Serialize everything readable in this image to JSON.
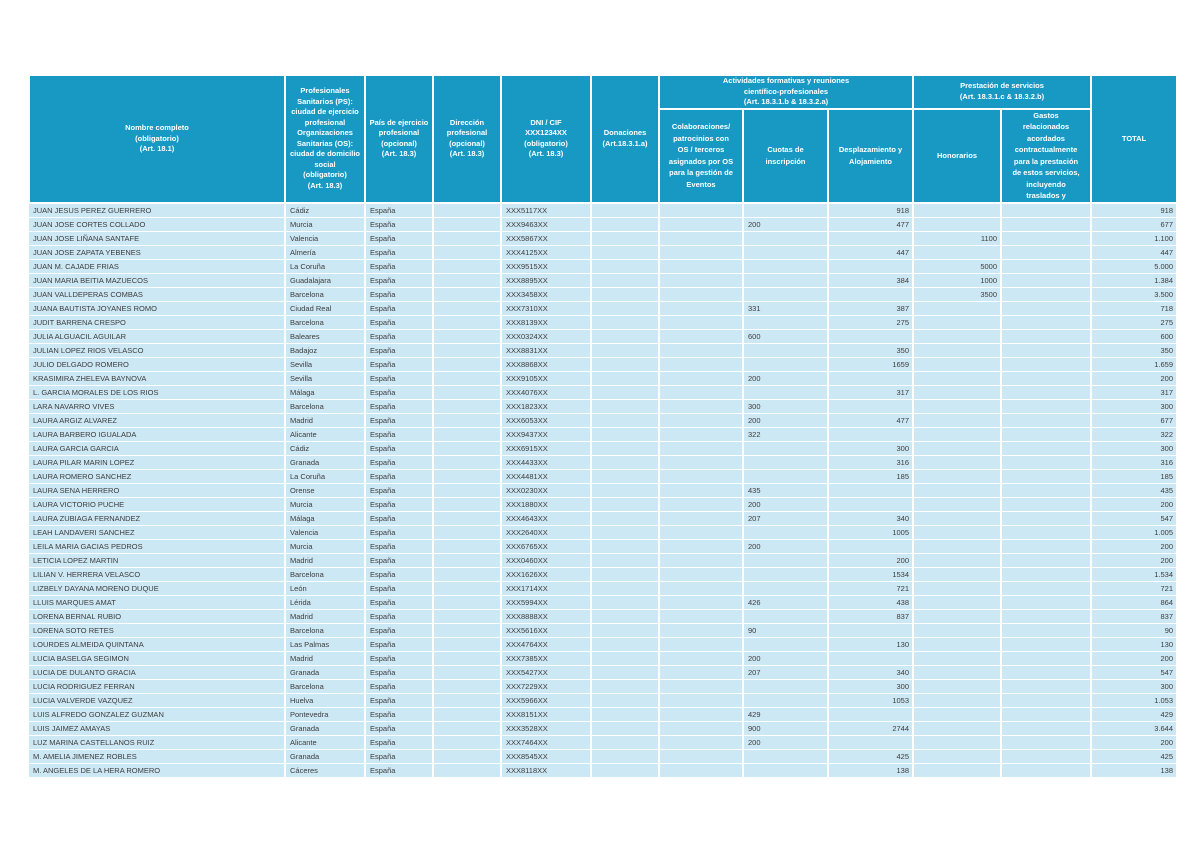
{
  "table": {
    "header": {
      "nombre": "Nombre completo\n(obligatorio)\n(Art. 18.1)",
      "ciudad": "Profesionales\nSanitarios (PS):\nciudad de ejercicio\nprofesional\nOrganizaciones\nSanitarias (OS):\nciudad de domicilio\nsocial\n(obligatorio)\n(Art. 18.3)",
      "pais": "País de ejercicio\nprofesional\n(opcional)\n(Art. 18.3)",
      "direccion": "Dirección\nprofesional\n(opcional)\n(Art. 18.3)",
      "dni": "DNI / CIF\nXXX1234XX\n(obligatorio)\n(Art. 18.3)",
      "donaciones": "Donaciones\n(Art.18.3.1.a)",
      "grupo_actividades": "Actividades formativas y reuniones\ncientífico-profesionales\n(Art. 18.3.1.b & 18.3.2.a)",
      "colaboraciones": "Colaboraciones/\npatrocinios con\nOS / terceros\nasignados por OS\npara la gestión de\nEventos",
      "cuotas": "Cuotas de\ninscripción",
      "desplazamiento": "Desplazamiento y\nAlojamiento",
      "grupo_prestacion": "Prestación de servicios\n(Art. 18.3.1.c & 18.3.2.b)",
      "honorarios": "Honorarios",
      "gastos": "Gastos\nrelacionados\nacordados\ncontractualmente\npara la prestación\nde estos servicios,\nincluyendo\ntraslados y",
      "total": "TOTAL"
    },
    "colors": {
      "header_bg": "#1899C4",
      "row_bg": "#CDE8F5",
      "grid": "#FFFFFF",
      "text": "#3C3C3C"
    },
    "rows": [
      [
        "JUAN JESUS PEREZ GUERRERO",
        "Cádiz",
        "España",
        "",
        "XXX5117XX",
        "",
        "",
        "",
        "918",
        "",
        "",
        "918"
      ],
      [
        "JUAN JOSE CORTES COLLADO",
        "Murcia",
        "España",
        "",
        "XXX9463XX",
        "",
        "",
        "200",
        "477",
        "",
        "",
        "677"
      ],
      [
        "JUAN JOSE LIÑANA SANTAFE",
        "Valencia",
        "España",
        "",
        "XXX5867XX",
        "",
        "",
        "",
        "",
        "1100",
        "",
        "1.100"
      ],
      [
        "JUAN JOSE ZAPATA YEBENES",
        "Almería",
        "España",
        "",
        "XXX4125XX",
        "",
        "",
        "",
        "447",
        "",
        "",
        "447"
      ],
      [
        "JUAN M. CAJADE FRIAS",
        "La Coruña",
        "España",
        "",
        "XXX9515XX",
        "",
        "",
        "",
        "",
        "5000",
        "",
        "5.000"
      ],
      [
        "JUAN MARIA BEITIA MAZUECOS",
        "Guadalajara",
        "España",
        "",
        "XXX8895XX",
        "",
        "",
        "",
        "384",
        "1000",
        "",
        "1.384"
      ],
      [
        "JUAN VALLDEPERAS COMBAS",
        "Barcelona",
        "España",
        "",
        "XXX3458XX",
        "",
        "",
        "",
        "",
        "3500",
        "",
        "3.500"
      ],
      [
        "JUANA BAUTISTA JOYANES ROMO",
        "Ciudad Real",
        "España",
        "",
        "XXX7310XX",
        "",
        "",
        "331",
        "387",
        "",
        "",
        "718"
      ],
      [
        "JUDIT BARRENA CRESPO",
        "Barcelona",
        "España",
        "",
        "XXX8139XX",
        "",
        "",
        "",
        "275",
        "",
        "",
        "275"
      ],
      [
        "JULIA ALGUACIL AGUILAR",
        "Baleares",
        "España",
        "",
        "XXX0324XX",
        "",
        "",
        "600",
        "",
        "",
        "",
        "600"
      ],
      [
        "JULIAN LOPEZ RIOS VELASCO",
        "Badajoz",
        "España",
        "",
        "XXX8831XX",
        "",
        "",
        "",
        "350",
        "",
        "",
        "350"
      ],
      [
        "JULIO DELGADO ROMERO",
        "Sevilla",
        "España",
        "",
        "XXX8868XX",
        "",
        "",
        "",
        "1659",
        "",
        "",
        "1.659"
      ],
      [
        "KRASIMIRA ZHELEVA BAYNOVA",
        "Sevilla",
        "España",
        "",
        "XXX9105XX",
        "",
        "",
        "200",
        "",
        "",
        "",
        "200"
      ],
      [
        "L. GARCIA MORALES DE LOS RIOS",
        "Málaga",
        "España",
        "",
        "XXX4076XX",
        "",
        "",
        "",
        "317",
        "",
        "",
        "317"
      ],
      [
        "LARA NAVARRO VIVES",
        "Barcelona",
        "España",
        "",
        "XXX1823XX",
        "",
        "",
        "300",
        "",
        "",
        "",
        "300"
      ],
      [
        "LAURA ARGIZ ALVAREZ",
        "Madrid",
        "España",
        "",
        "XXX6053XX",
        "",
        "",
        "200",
        "477",
        "",
        "",
        "677"
      ],
      [
        "LAURA BARBERO IGUALADA",
        "Alicante",
        "España",
        "",
        "XXX9437XX",
        "",
        "",
        "322",
        "",
        "",
        "",
        "322"
      ],
      [
        "LAURA GARCIA GARCIA",
        "Cádiz",
        "España",
        "",
        "XXX6915XX",
        "",
        "",
        "",
        "300",
        "",
        "",
        "300"
      ],
      [
        "LAURA PILAR MARIN LOPEZ",
        "Granada",
        "España",
        "",
        "XXX4433XX",
        "",
        "",
        "",
        "316",
        "",
        "",
        "316"
      ],
      [
        "LAURA ROMERO SANCHEZ",
        "La Coruña",
        "España",
        "",
        "XXX4481XX",
        "",
        "",
        "",
        "185",
        "",
        "",
        "185"
      ],
      [
        "LAURA SENA HERRERO",
        "Orense",
        "España",
        "",
        "XXX0230XX",
        "",
        "",
        "435",
        "",
        "",
        "",
        "435"
      ],
      [
        "LAURA VICTORIO PUCHE",
        "Murcia",
        "España",
        "",
        "XXX1880XX",
        "",
        "",
        "200",
        "",
        "",
        "",
        "200"
      ],
      [
        "LAURA ZUBIAGA FERNANDEZ",
        "Málaga",
        "España",
        "",
        "XXX4643XX",
        "",
        "",
        "207",
        "340",
        "",
        "",
        "547"
      ],
      [
        "LEAH LANDAVERI SANCHEZ",
        "Valencia",
        "España",
        "",
        "XXX2640XX",
        "",
        "",
        "",
        "1005",
        "",
        "",
        "1.005"
      ],
      [
        "LEILA MARIA GACIAS PEDROS",
        "Murcia",
        "España",
        "",
        "XXX6765XX",
        "",
        "",
        "200",
        "",
        "",
        "",
        "200"
      ],
      [
        "LETICIA LOPEZ MARTIN",
        "Madrid",
        "España",
        "",
        "XXX0460XX",
        "",
        "",
        "",
        "200",
        "",
        "",
        "200"
      ],
      [
        "LILIAN V. HERRERA VELASCO",
        "Barcelona",
        "España",
        "",
        "XXX1626XX",
        "",
        "",
        "",
        "1534",
        "",
        "",
        "1.534"
      ],
      [
        "LIZBELY DAYANA MORENO DUQUE",
        "León",
        "España",
        "",
        "XXX1714XX",
        "",
        "",
        "",
        "721",
        "",
        "",
        "721"
      ],
      [
        "LLUIS MARQUES AMAT",
        "Lérida",
        "España",
        "",
        "XXX5994XX",
        "",
        "",
        "426",
        "438",
        "",
        "",
        "864"
      ],
      [
        "LORENA BERNAL RUBIO",
        "Madrid",
        "España",
        "",
        "XXX8888XX",
        "",
        "",
        "",
        "837",
        "",
        "",
        "837"
      ],
      [
        "LORENA SOTO RETES",
        "Barcelona",
        "España",
        "",
        "XXX5616XX",
        "",
        "",
        "90",
        "",
        "",
        "",
        "90"
      ],
      [
        "LOURDES ALMEIDA QUINTANA",
        "Las Palmas",
        "España",
        "",
        "XXX4764XX",
        "",
        "",
        "",
        "130",
        "",
        "",
        "130"
      ],
      [
        "LUCIA BASELGA SEGIMON",
        "Madrid",
        "España",
        "",
        "XXX7385XX",
        "",
        "",
        "200",
        "",
        "",
        "",
        "200"
      ],
      [
        "LUCIA DE DULANTO GRACIA",
        "Granada",
        "España",
        "",
        "XXX5427XX",
        "",
        "",
        "207",
        "340",
        "",
        "",
        "547"
      ],
      [
        "LUCIA RODRIGUEZ FERRAN",
        "Barcelona",
        "España",
        "",
        "XXX7229XX",
        "",
        "",
        "",
        "300",
        "",
        "",
        "300"
      ],
      [
        "LUCIA VALVERDE VAZQUEZ",
        "Huelva",
        "España",
        "",
        "XXX5966XX",
        "",
        "",
        "",
        "1053",
        "",
        "",
        "1.053"
      ],
      [
        "LUIS ALFREDO GONZALEZ GUZMAN",
        "Pontevedra",
        "España",
        "",
        "XXX8151XX",
        "",
        "",
        "429",
        "",
        "",
        "",
        "429"
      ],
      [
        "LUIS JAIMEZ AMAYAS",
        "Granada",
        "España",
        "",
        "XXX3528XX",
        "",
        "",
        "900",
        "2744",
        "",
        "",
        "3.644"
      ],
      [
        "LUZ MARINA CASTELLANOS RUIZ",
        "Alicante",
        "España",
        "",
        "XXX7464XX",
        "",
        "",
        "200",
        "",
        "",
        "",
        "200"
      ],
      [
        "M. AMELIA JIMENEZ ROBLES",
        "Granada",
        "España",
        "",
        "XXX8545XX",
        "",
        "",
        "",
        "425",
        "",
        "",
        "425"
      ],
      [
        "M. ANGELES DE LA HERA ROMERO",
        "Cáceres",
        "España",
        "",
        "XXX8118XX",
        "",
        "",
        "",
        "138",
        "",
        "",
        "138"
      ]
    ]
  }
}
